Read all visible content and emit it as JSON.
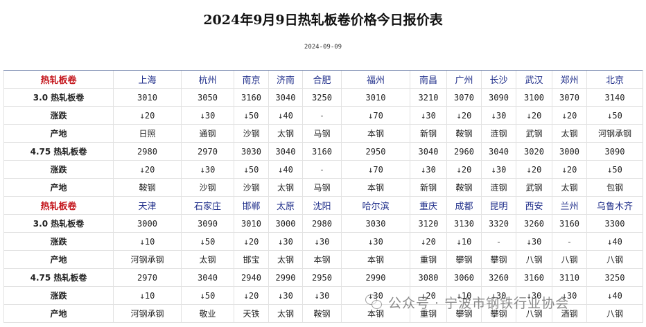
{
  "title": "2024年9月9日热轧板卷价格今日报价表",
  "date": "2024-09-09",
  "sections": [
    {
      "header_label": "热轧板卷",
      "cities": [
        "上海",
        "杭州",
        "南京",
        "济南",
        "合肥",
        "福州",
        "南昌",
        "广州",
        "长沙",
        "武汉",
        "郑州",
        "北京"
      ],
      "rows": [
        {
          "label": "3.0  热轧板卷",
          "type": "price",
          "values": [
            "3010",
            "3050",
            "3160",
            "3040",
            "3250",
            "3010",
            "3210",
            "3070",
            "3090",
            "3100",
            "3070",
            "3140"
          ]
        },
        {
          "label": "涨跌",
          "type": "change",
          "values": [
            "↓20",
            "↓30",
            "↓50",
            "↓40",
            "-",
            "↓70",
            "↓30",
            "↓20",
            "↓30",
            "↓20",
            "↓20",
            "↓50"
          ]
        },
        {
          "label": "产地",
          "type": "origin",
          "values": [
            "日照",
            "通钢",
            "沙钢",
            "太钢",
            "马钢",
            "本钢",
            "新钢",
            "鞍钢",
            "涟钢",
            "武钢",
            "太钢",
            "河钢承钢"
          ]
        },
        {
          "label": "4.75  热轧板卷",
          "type": "price",
          "values": [
            "2980",
            "2970",
            "3030",
            "3040",
            "3160",
            "2950",
            "3040",
            "2960",
            "3040",
            "3020",
            "3000",
            "3090"
          ]
        },
        {
          "label": "涨跌",
          "type": "change",
          "values": [
            "↓20",
            "↓30",
            "↓50",
            "↓40",
            "-",
            "↓70",
            "↓30",
            "↓20",
            "↓30",
            "↓20",
            "↓20",
            "↓50"
          ]
        },
        {
          "label": "产地",
          "type": "origin",
          "values": [
            "鞍钢",
            "沙钢",
            "沙钢",
            "太钢",
            "马钢",
            "本钢",
            "新钢",
            "鞍钢",
            "涟钢",
            "武钢",
            "太钢",
            "包钢"
          ]
        }
      ]
    },
    {
      "header_label": "热轧板卷",
      "cities": [
        "天津",
        "石家庄",
        "邯郸",
        "太原",
        "沈阳",
        "哈尔滨",
        "重庆",
        "成都",
        "昆明",
        "西安",
        "兰州",
        "乌鲁木齐"
      ],
      "rows": [
        {
          "label": "3.0  热轧板卷",
          "type": "price",
          "values": [
            "3000",
            "3090",
            "3010",
            "3000",
            "2980",
            "3030",
            "3120",
            "3130",
            "3320",
            "3260",
            "3160",
            "3300"
          ]
        },
        {
          "label": "涨跌",
          "type": "change",
          "values": [
            "↓10",
            "↓50",
            "↓20",
            "↓30",
            "↓30",
            "↓30",
            "↓20",
            "↓10",
            "-",
            "↓30",
            "-",
            "↓40"
          ]
        },
        {
          "label": "产地",
          "type": "origin",
          "values": [
            "河钢承钢",
            "太钢",
            "邯宝",
            "太钢",
            "本钢",
            "本钢",
            "重钢",
            "攀钢",
            "攀钢",
            "八钢",
            "八钢",
            "八钢"
          ]
        },
        {
          "label": "4.75  热轧板卷",
          "type": "price",
          "values": [
            "2970",
            "3040",
            "2940",
            "2990",
            "2950",
            "2990",
            "3080",
            "3060",
            "3260",
            "3160",
            "3110",
            "3250"
          ]
        },
        {
          "label": "涨跌",
          "type": "change",
          "values": [
            "↓10",
            "↓50",
            "↓20",
            "↓30",
            "↓30",
            "↓30",
            "↓20",
            "↓10",
            "↓30",
            "↓30",
            "↓30",
            "↓40"
          ]
        },
        {
          "label": "产地",
          "type": "origin",
          "values": [
            "河钢承钢",
            "敬业",
            "天铁",
            "太钢",
            "鞍钢",
            "本钢",
            "重钢",
            "攀钢",
            "攀钢",
            "八钢",
            "酒钢",
            "八钢"
          ]
        }
      ]
    }
  ],
  "watermark": {
    "text": "公众号 · 宁波市钢铁行业协会",
    "icon": "wechat-icon"
  },
  "colors": {
    "header_label": "#c4161c",
    "city": "#1f2e8a",
    "change": "#2b8a2b"
  }
}
